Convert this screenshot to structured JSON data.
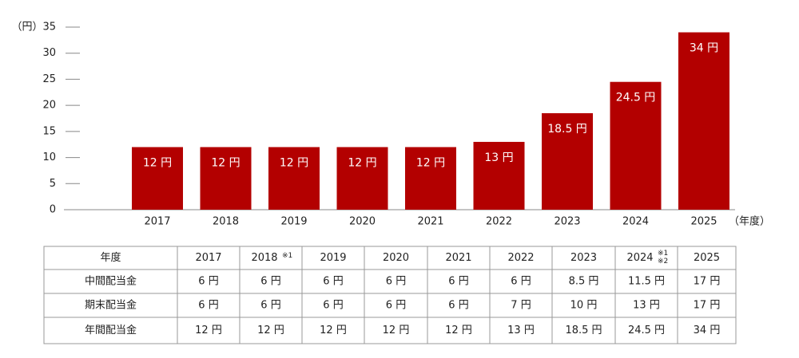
{
  "chart_data": {
    "type": "bar",
    "y_label": "（円）",
    "x_label": "（年度）",
    "categories": [
      "2017",
      "2018",
      "2019",
      "2020",
      "2021",
      "2022",
      "2023",
      "2024",
      "2025"
    ],
    "values": [
      12,
      12,
      12,
      12,
      12,
      13,
      18.5,
      24.5,
      34
    ],
    "value_labels": [
      "12 円",
      "12 円",
      "12 円",
      "12 円",
      "12 円",
      "13 円",
      "18.5 円",
      "24.5 円",
      "34 円"
    ],
    "color": "#b30000",
    "ylim": [
      0,
      35
    ],
    "yticks": [
      0,
      5,
      10,
      15,
      20,
      25,
      30,
      35
    ],
    "grid": false
  },
  "table": {
    "header": [
      "年度",
      "2017",
      {
        "text": "2018",
        "note": [
          "※1"
        ]
      },
      "2019",
      "2020",
      "2021",
      "2022",
      "2023",
      {
        "text": "2024",
        "note": [
          "※1",
          "※2"
        ]
      },
      "2025"
    ],
    "rows": [
      [
        "中間配当金",
        "6 円",
        "6 円",
        "6 円",
        "6 円",
        "6 円",
        "6 円",
        "8.5 円",
        "11.5 円",
        "17 円"
      ],
      [
        "期末配当金",
        "6 円",
        "6 円",
        "6 円",
        "6 円",
        "6 円",
        "7 円",
        "10 円",
        "13 円",
        "17 円"
      ],
      [
        "年間配当金",
        "12 円",
        "12 円",
        "12 円",
        "12 円",
        "12 円",
        "13 円",
        "18.5 円",
        "24.5 円",
        "34 円"
      ]
    ]
  }
}
